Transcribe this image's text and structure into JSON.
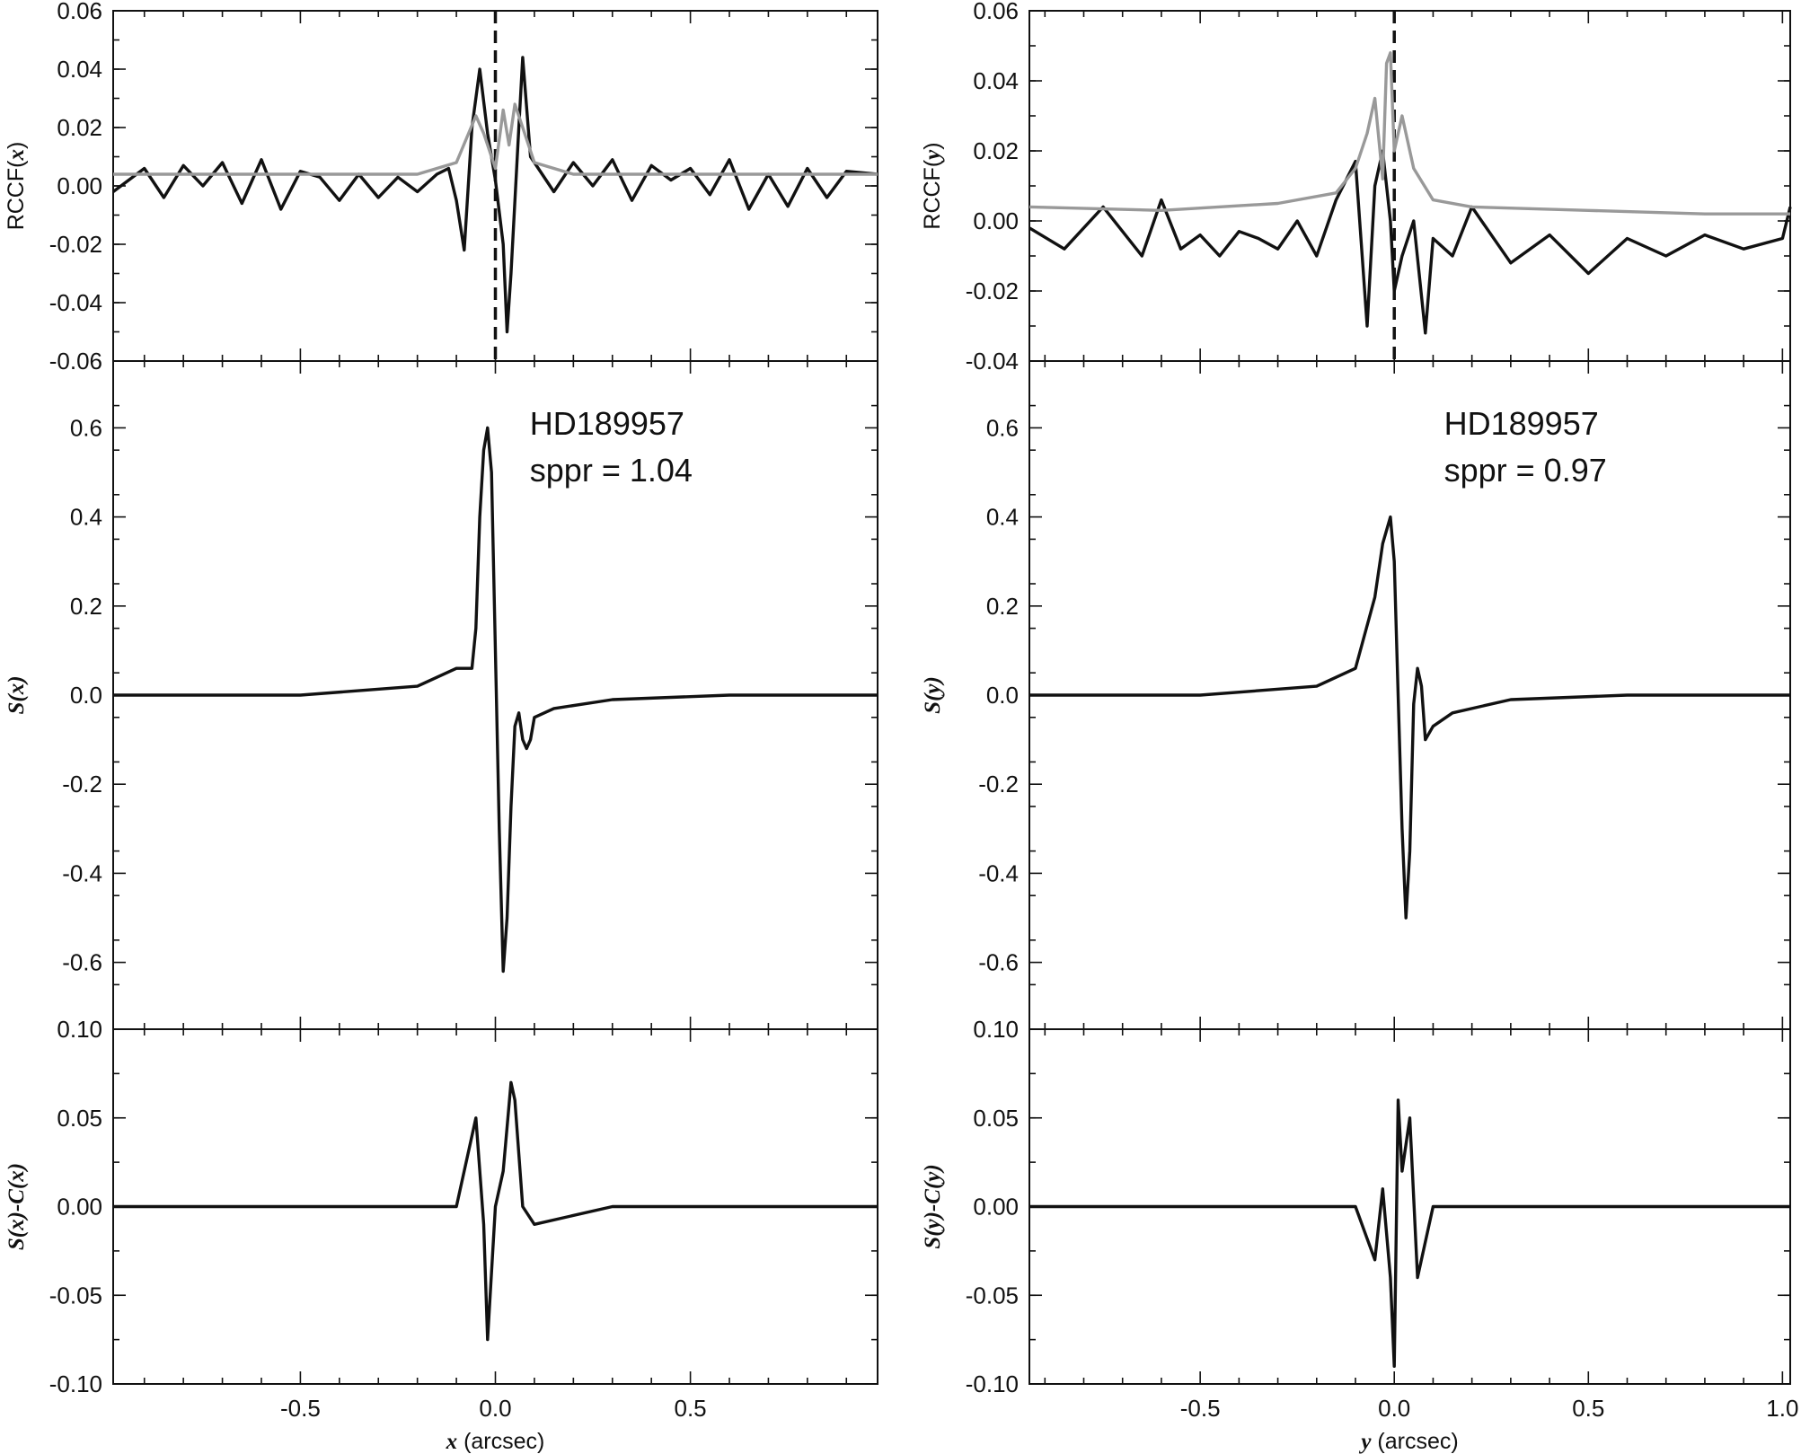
{
  "chart_data": [
    {
      "type": "line",
      "panel": "left-top",
      "ylabel": "RCCF(x)",
      "xlim": [
        -0.98,
        0.98
      ],
      "ylim": [
        -0.06,
        0.06
      ],
      "yticks": [
        -0.06,
        -0.04,
        -0.02,
        0.0,
        0.02,
        0.04,
        0.06
      ],
      "yticklabels": [
        "-0.06",
        "-0.04",
        "-0.02",
        "0.00",
        "0.02",
        "0.04",
        "0.06"
      ],
      "vline_x": 0.0,
      "series": [
        {
          "color": "#111111",
          "x": [
            -0.98,
            -0.9,
            -0.85,
            -0.8,
            -0.75,
            -0.7,
            -0.65,
            -0.6,
            -0.55,
            -0.5,
            -0.45,
            -0.4,
            -0.35,
            -0.3,
            -0.25,
            -0.2,
            -0.15,
            -0.12,
            -0.1,
            -0.08,
            -0.06,
            -0.04,
            -0.02,
            0.0,
            0.02,
            0.03,
            0.04,
            0.06,
            0.07,
            0.09,
            0.12,
            0.15,
            0.2,
            0.25,
            0.3,
            0.35,
            0.4,
            0.45,
            0.5,
            0.55,
            0.6,
            0.65,
            0.7,
            0.75,
            0.8,
            0.85,
            0.9,
            0.98
          ],
          "values": [
            -0.002,
            0.006,
            -0.004,
            0.007,
            0.0,
            0.008,
            -0.006,
            0.009,
            -0.008,
            0.005,
            0.003,
            -0.005,
            0.004,
            -0.004,
            0.003,
            -0.002,
            0.004,
            0.006,
            -0.005,
            -0.022,
            0.02,
            0.04,
            0.018,
            0.002,
            -0.02,
            -0.05,
            -0.03,
            0.02,
            0.044,
            0.01,
            0.004,
            -0.002,
            0.008,
            0.0,
            0.009,
            -0.005,
            0.007,
            0.002,
            0.006,
            -0.003,
            0.009,
            -0.008,
            0.004,
            -0.007,
            0.006,
            -0.004,
            0.005,
            0.004
          ]
        },
        {
          "color": "#999999",
          "x": [
            -0.98,
            -0.8,
            -0.6,
            -0.4,
            -0.2,
            -0.1,
            -0.05,
            -0.03,
            0.0,
            0.02,
            0.035,
            0.05,
            0.07,
            0.1,
            0.2,
            0.4,
            0.6,
            0.8,
            0.98
          ],
          "values": [
            0.004,
            0.004,
            0.004,
            0.004,
            0.004,
            0.008,
            0.024,
            0.018,
            0.006,
            0.026,
            0.014,
            0.028,
            0.02,
            0.008,
            0.004,
            0.004,
            0.004,
            0.004,
            0.004
          ]
        }
      ]
    },
    {
      "type": "line",
      "panel": "left-middle",
      "ylabel": "S(x)",
      "xlim": [
        -0.98,
        0.98
      ],
      "ylim": [
        -0.75,
        0.75
      ],
      "yticks": [
        -0.6,
        -0.4,
        -0.2,
        0.0,
        0.2,
        0.4,
        0.6
      ],
      "yticklabels": [
        "-0.6",
        "-0.4",
        "-0.2",
        "0.0",
        "0.2",
        "0.4",
        "0.6"
      ],
      "annotations": [
        "HD189957",
        "sppr = 1.04"
      ],
      "series": [
        {
          "color": "#111111",
          "x": [
            -0.98,
            -0.5,
            -0.2,
            -0.1,
            -0.06,
            -0.05,
            -0.04,
            -0.03,
            -0.02,
            -0.01,
            0.0,
            0.01,
            0.02,
            0.03,
            0.04,
            0.05,
            0.06,
            0.07,
            0.08,
            0.09,
            0.1,
            0.15,
            0.3,
            0.6,
            0.98
          ],
          "values": [
            0.0,
            0.0,
            0.02,
            0.06,
            0.06,
            0.15,
            0.4,
            0.55,
            0.6,
            0.5,
            0.1,
            -0.3,
            -0.62,
            -0.5,
            -0.25,
            -0.07,
            -0.04,
            -0.1,
            -0.12,
            -0.1,
            -0.05,
            -0.03,
            -0.01,
            0.0,
            0.0
          ]
        }
      ]
    },
    {
      "type": "line",
      "panel": "left-bottom",
      "ylabel": "S(x)-C(x)",
      "xlabel": "x (arcsec)",
      "xlim": [
        -0.98,
        0.98
      ],
      "ylim": [
        -0.1,
        0.1
      ],
      "yticks": [
        -0.1,
        -0.05,
        0.0,
        0.05,
        0.1
      ],
      "yticklabels": [
        "-0.10",
        "-0.05",
        "0.00",
        "0.05",
        "0.10"
      ],
      "xticks": [
        -0.5,
        0.0,
        0.5
      ],
      "xticklabels": [
        "-0.5",
        "0.0",
        "0.5"
      ],
      "series": [
        {
          "color": "#111111",
          "x": [
            -0.98,
            -0.6,
            -0.3,
            -0.1,
            -0.05,
            -0.03,
            -0.02,
            0.0,
            0.02,
            0.04,
            0.05,
            0.07,
            0.1,
            0.3,
            0.6,
            0.98
          ],
          "values": [
            0.0,
            0.0,
            0.0,
            0.0,
            0.05,
            -0.01,
            -0.075,
            0.0,
            0.02,
            0.07,
            0.06,
            0.0,
            -0.01,
            0.0,
            0.0,
            0.0
          ]
        }
      ]
    },
    {
      "type": "line",
      "panel": "right-top",
      "ylabel": "RCCF(y)",
      "xlim": [
        -0.94,
        1.02
      ],
      "ylim": [
        -0.04,
        0.06
      ],
      "yticks": [
        -0.04,
        -0.02,
        0.0,
        0.02,
        0.04,
        0.06
      ],
      "yticklabels": [
        "-0.04",
        "-0.02",
        "0.00",
        "0.02",
        "0.04",
        "0.06"
      ],
      "vline_x": 0.0,
      "series": [
        {
          "color": "#111111",
          "x": [
            -0.94,
            -0.85,
            -0.75,
            -0.65,
            -0.6,
            -0.55,
            -0.5,
            -0.45,
            -0.4,
            -0.35,
            -0.3,
            -0.25,
            -0.2,
            -0.15,
            -0.1,
            -0.07,
            -0.05,
            -0.03,
            -0.01,
            0.0,
            0.02,
            0.05,
            0.08,
            0.1,
            0.15,
            0.2,
            0.3,
            0.4,
            0.5,
            0.6,
            0.7,
            0.8,
            0.9,
            1.0,
            1.02
          ],
          "values": [
            -0.002,
            -0.008,
            0.004,
            -0.01,
            0.006,
            -0.008,
            -0.004,
            -0.01,
            -0.003,
            -0.005,
            -0.008,
            0.0,
            -0.01,
            0.006,
            0.017,
            -0.03,
            0.01,
            0.02,
            0.0,
            -0.02,
            -0.01,
            0.0,
            -0.032,
            -0.005,
            -0.01,
            0.004,
            -0.012,
            -0.004,
            -0.015,
            -0.005,
            -0.01,
            -0.004,
            -0.008,
            -0.005,
            0.004
          ]
        },
        {
          "color": "#999999",
          "x": [
            -0.94,
            -0.6,
            -0.3,
            -0.15,
            -0.1,
            -0.07,
            -0.05,
            -0.03,
            -0.02,
            -0.01,
            0.0,
            0.02,
            0.05,
            0.1,
            0.2,
            0.5,
            0.8,
            1.02
          ],
          "values": [
            0.004,
            0.003,
            0.005,
            0.008,
            0.015,
            0.025,
            0.035,
            0.012,
            0.045,
            0.048,
            0.02,
            0.03,
            0.015,
            0.006,
            0.004,
            0.003,
            0.002,
            0.002
          ]
        }
      ]
    },
    {
      "type": "line",
      "panel": "right-middle",
      "ylabel": "S(y)",
      "xlim": [
        -0.94,
        1.02
      ],
      "ylim": [
        -0.75,
        0.75
      ],
      "yticks": [
        -0.6,
        -0.4,
        -0.2,
        0.0,
        0.2,
        0.4,
        0.6
      ],
      "yticklabels": [
        "-0.6",
        "-0.4",
        "-0.2",
        "0.0",
        "0.2",
        "0.4",
        "0.6"
      ],
      "annotations": [
        "HD189957",
        "sppr = 0.97"
      ],
      "series": [
        {
          "color": "#111111",
          "x": [
            -0.94,
            -0.5,
            -0.2,
            -0.1,
            -0.05,
            -0.03,
            -0.01,
            0.0,
            0.01,
            0.02,
            0.03,
            0.04,
            0.05,
            0.06,
            0.07,
            0.08,
            0.1,
            0.15,
            0.3,
            0.6,
            1.02
          ],
          "values": [
            0.0,
            0.0,
            0.02,
            0.06,
            0.22,
            0.34,
            0.4,
            0.3,
            0.0,
            -0.3,
            -0.5,
            -0.35,
            -0.02,
            0.06,
            0.02,
            -0.1,
            -0.07,
            -0.04,
            -0.01,
            0.0,
            0.0
          ]
        }
      ]
    },
    {
      "type": "line",
      "panel": "right-bottom",
      "ylabel": "S(y)-C(y)",
      "xlabel": "y (arcsec)",
      "xlim": [
        -0.94,
        1.02
      ],
      "ylim": [
        -0.1,
        0.1
      ],
      "yticks": [
        -0.1,
        -0.05,
        0.0,
        0.05,
        0.1
      ],
      "yticklabels": [
        "-0.10",
        "-0.05",
        "0.00",
        "0.05",
        "0.10"
      ],
      "xticks": [
        -0.5,
        0.0,
        0.5,
        1.0
      ],
      "xticklabels": [
        "-0.5",
        "0.0",
        "0.5",
        "1.0"
      ],
      "series": [
        {
          "color": "#111111",
          "x": [
            -0.94,
            -0.6,
            -0.3,
            -0.1,
            -0.05,
            -0.03,
            -0.01,
            0.0,
            0.01,
            0.02,
            0.04,
            0.06,
            0.1,
            0.3,
            0.6,
            1.02
          ],
          "values": [
            0.0,
            0.0,
            0.0,
            0.0,
            -0.03,
            0.01,
            -0.04,
            -0.09,
            0.06,
            0.02,
            0.05,
            -0.04,
            0.0,
            0.0,
            0.0,
            0.0
          ]
        }
      ]
    }
  ]
}
